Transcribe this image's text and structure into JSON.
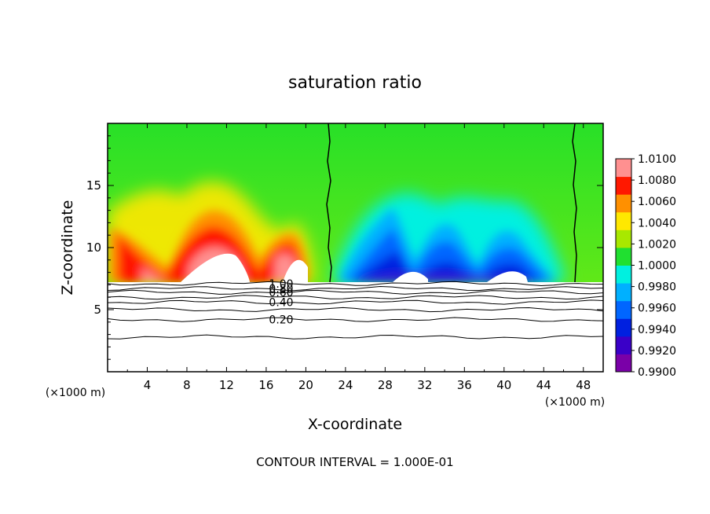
{
  "chart_data": {
    "type": "heatmap",
    "title": "saturation ratio",
    "xlabel": "X-coordinate",
    "ylabel": "Z-coordinate",
    "x_unit_left": "(×1000 m)",
    "x_unit_right": "(×1000 m)",
    "xlim": [
      0,
      50
    ],
    "ylim": [
      0,
      20
    ],
    "x_ticks": [
      4,
      8,
      12,
      16,
      20,
      24,
      28,
      32,
      36,
      40,
      44,
      48
    ],
    "x_tick_labels": [
      "4",
      "8",
      "12",
      "16",
      "20",
      "24",
      "28",
      "32",
      "36",
      "40",
      "44",
      "48"
    ],
    "y_ticks": [
      5,
      10,
      15
    ],
    "y_tick_labels": [
      "5",
      "10",
      "15"
    ],
    "colorbar": {
      "min": 0.99,
      "max": 1.01,
      "labels": [
        "1.0100",
        "1.0080",
        "1.0060",
        "1.0040",
        "1.0020",
        "1.0000",
        "0.9980",
        "0.9960",
        "0.9940",
        "0.9920",
        "0.9900"
      ],
      "colors": [
        "#7a00a8",
        "#3a00c8",
        "#0020e0",
        "#0066ff",
        "#00b0ff",
        "#00f0e0",
        "#20e030",
        "#a8e800",
        "#ffe800",
        "#ff9000",
        "#ff1800",
        "#ff9090"
      ]
    },
    "field_top_z": 7.2,
    "cloud_boundary_x": [
      22.6,
      47.2
    ],
    "contour_lines": [
      {
        "z": 7.1,
        "label": "1.00"
      },
      {
        "z": 6.7,
        "label": "0.80"
      },
      {
        "z": 6.4,
        "label": "0.60"
      },
      {
        "z": 6.0,
        "label": ""
      },
      {
        "z": 5.6,
        "label": "0.40"
      },
      {
        "z": 5.0,
        "label": ""
      },
      {
        "z": 4.2,
        "label": "0.20"
      },
      {
        "z": 2.8,
        "label": ""
      }
    ],
    "contour_interval_text": "CONTOUR INTERVAL = 1.000E-01"
  }
}
